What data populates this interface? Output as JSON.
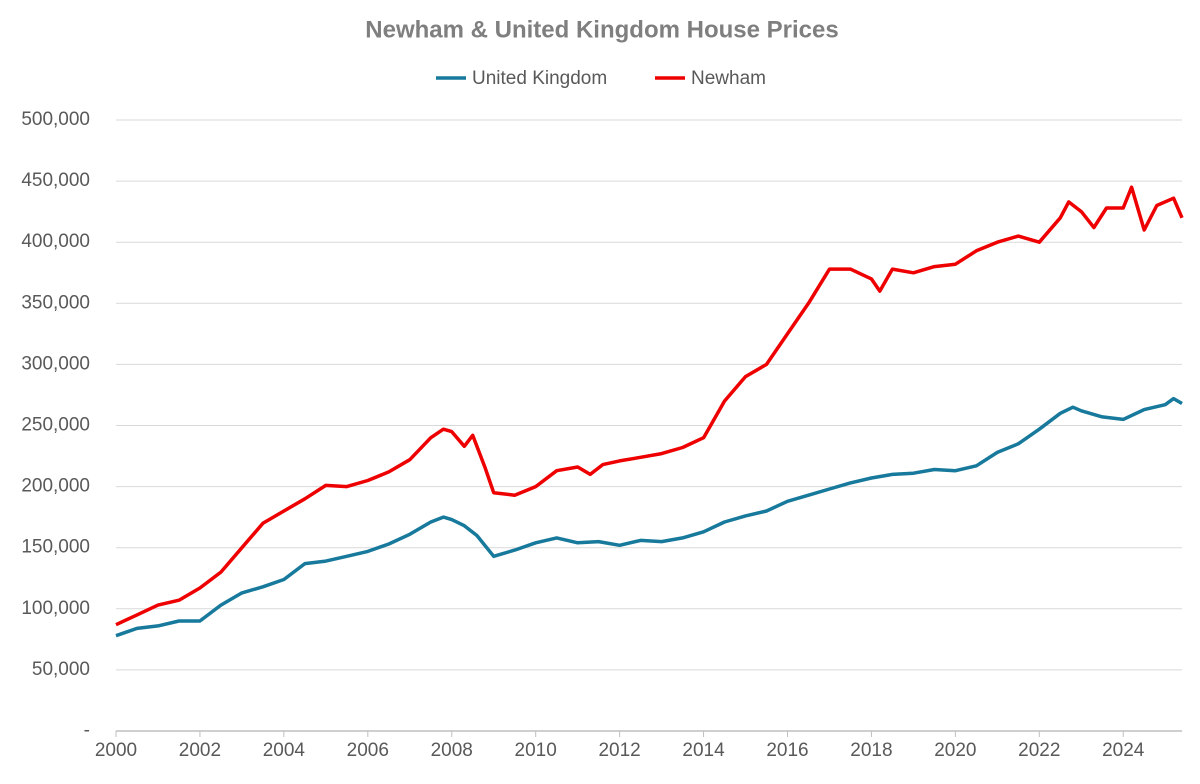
{
  "chart_data": {
    "type": "line",
    "title": "Newham & United Kingdom House Prices",
    "xlim": [
      2000,
      2025.4
    ],
    "xticks": [
      2000,
      2002,
      2004,
      2006,
      2008,
      2010,
      2012,
      2014,
      2016,
      2018,
      2020,
      2022,
      2024
    ],
    "ylim": [
      0,
      500000
    ],
    "yticks": [
      {
        "value": 0,
        "label": "-"
      },
      {
        "value": 50000,
        "label": "50,000"
      },
      {
        "value": 100000,
        "label": "100,000"
      },
      {
        "value": 150000,
        "label": "150,000"
      },
      {
        "value": 200000,
        "label": "200,000"
      },
      {
        "value": 250000,
        "label": "250,000"
      },
      {
        "value": 300000,
        "label": "300,000"
      },
      {
        "value": 350000,
        "label": "350,000"
      },
      {
        "value": 400000,
        "label": "400,000"
      },
      {
        "value": 450000,
        "label": "450,000"
      },
      {
        "value": 500000,
        "label": "500,000"
      }
    ],
    "grid": true,
    "legend": "top",
    "series": [
      {
        "name": "United Kingdom",
        "color": "#17799b",
        "x": [
          2000,
          2000.5,
          2001,
          2001.5,
          2002,
          2002.5,
          2003,
          2003.5,
          2004,
          2004.5,
          2005,
          2005.5,
          2006,
          2006.5,
          2007,
          2007.5,
          2007.8,
          2008,
          2008.3,
          2008.6,
          2009,
          2009.5,
          2010,
          2010.5,
          2011,
          2011.5,
          2012,
          2012.5,
          2013,
          2013.5,
          2014,
          2014.5,
          2015,
          2015.5,
          2016,
          2016.5,
          2017,
          2017.5,
          2018,
          2018.5,
          2019,
          2019.5,
          2020,
          2020.5,
          2021,
          2021.5,
          2022,
          2022.5,
          2022.8,
          2023,
          2023.5,
          2024,
          2024.5,
          2025,
          2025.2,
          2025.4
        ],
        "values": [
          78000,
          84000,
          86000,
          90000,
          90000,
          103000,
          113000,
          118000,
          124000,
          137000,
          139000,
          143000,
          147000,
          153000,
          161000,
          171000,
          175000,
          173000,
          168000,
          160000,
          143000,
          148000,
          154000,
          158000,
          154000,
          155000,
          152000,
          156000,
          155000,
          158000,
          163000,
          171000,
          176000,
          180000,
          188000,
          193000,
          198000,
          203000,
          207000,
          210000,
          211000,
          214000,
          213000,
          217000,
          228000,
          235000,
          247000,
          260000,
          265000,
          262000,
          257000,
          255000,
          263000,
          267000,
          272000,
          268000
        ]
      },
      {
        "name": "Newham",
        "color": "#ee0000",
        "x": [
          2000,
          2000.5,
          2001,
          2001.5,
          2002,
          2002.5,
          2003,
          2003.5,
          2004,
          2004.5,
          2005,
          2005.5,
          2006,
          2006.5,
          2007,
          2007.5,
          2007.8,
          2008,
          2008.3,
          2008.5,
          2008.8,
          2009,
          2009.5,
          2010,
          2010.5,
          2011,
          2011.3,
          2011.6,
          2012,
          2012.5,
          2013,
          2013.5,
          2014,
          2014.5,
          2015,
          2015.5,
          2016,
          2016.5,
          2017,
          2017.5,
          2018,
          2018.2,
          2018.5,
          2019,
          2019.5,
          2020,
          2020.5,
          2021,
          2021.5,
          2022,
          2022.5,
          2022.7,
          2023,
          2023.3,
          2023.6,
          2024,
          2024.2,
          2024.5,
          2024.8,
          2025.2,
          2025.4
        ],
        "values": [
          87000,
          95000,
          103000,
          107000,
          117000,
          130000,
          150000,
          170000,
          180000,
          190000,
          201000,
          200000,
          205000,
          212000,
          222000,
          240000,
          247000,
          245000,
          233000,
          242000,
          215000,
          195000,
          193000,
          200000,
          213000,
          216000,
          210000,
          218000,
          221000,
          224000,
          227000,
          232000,
          240000,
          270000,
          290000,
          300000,
          325000,
          350000,
          378000,
          378000,
          370000,
          360000,
          378000,
          375000,
          380000,
          382000,
          393000,
          400000,
          405000,
          400000,
          420000,
          433000,
          425000,
          412000,
          428000,
          428000,
          445000,
          410000,
          430000,
          436000,
          420000
        ]
      }
    ]
  }
}
